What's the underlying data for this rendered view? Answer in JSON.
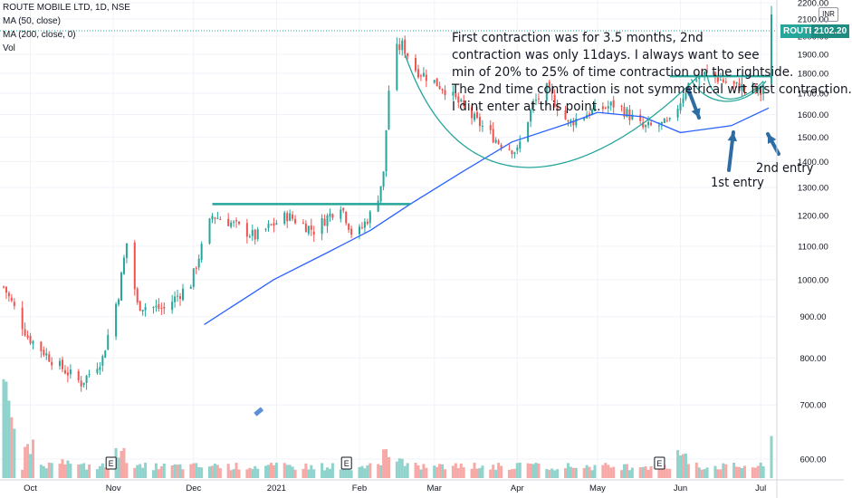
{
  "legend": {
    "symbol": "ROUTE MOBILE LTD, 1D, NSE",
    "ma50": "MA (50, close)",
    "ma200": "MA (200, close, 0)",
    "vol": "Vol"
  },
  "currency": "INR",
  "annotation": {
    "lines": [
      "First contraction was for 3.5 months, 2nd",
      "contraction was only 11days. I always want to see",
      "min of 20% to 25% of time contraction on the rightside.",
      "The 2nd time contraction is not symmetrical wrt first contraction.",
      "I dint enter at this point."
    ],
    "first_entry": "1st entry",
    "second_entry": "2nd entry"
  },
  "colors": {
    "up": "#26a69a",
    "down": "#ef5350",
    "ma": "#2962ff",
    "cup": "#26a69a",
    "grid": "#f0f3fa",
    "arrow": "#2e6da4"
  },
  "chart_data": {
    "type": "candlestick",
    "title": "ROUTE MOBILE LTD, 1D, NSE",
    "last_price": {
      "label": "ROUTE",
      "value": "2102.20"
    },
    "y_ticks": [
      "2200.00",
      "2100.00",
      "2000.00",
      "1900.00",
      "1800.00",
      "1700.00",
      "1600.00",
      "1500.00",
      "1400.00",
      "1300.00",
      "1200.00",
      "1100.00",
      "1000.00",
      "900.00",
      "800.00",
      "700.00",
      "600.00"
    ],
    "ylim": [
      550,
      2220
    ],
    "y_scale": "log",
    "x_ticks": [
      "Oct",
      "Nov",
      "Dec",
      "2021",
      "Feb",
      "Mar",
      "Apr",
      "May",
      "Jun",
      "Jul"
    ],
    "earnings_markers": [
      "E",
      "E",
      "E"
    ],
    "price_path": [
      [
        "2020-09-21",
        980
      ],
      [
        "2020-09-30",
        850
      ],
      [
        "2020-10-10",
        790
      ],
      [
        "2020-10-20",
        745
      ],
      [
        "2020-10-28",
        800
      ],
      [
        "2020-11-03",
        960
      ],
      [
        "2020-11-06",
        1110
      ],
      [
        "2020-11-10",
        930
      ],
      [
        "2020-11-20",
        920
      ],
      [
        "2020-11-30",
        990
      ],
      [
        "2020-12-08",
        1200
      ],
      [
        "2020-12-14",
        1180
      ],
      [
        "2020-12-24",
        1130
      ],
      [
        "2021-01-05",
        1200
      ],
      [
        "2021-01-15",
        1150
      ],
      [
        "2021-01-25",
        1240
      ],
      [
        "2021-01-30",
        1120
      ],
      [
        "2021-02-07",
        1230
      ],
      [
        "2021-02-10",
        1350
      ],
      [
        "2021-02-13",
        1900
      ],
      [
        "2021-02-17",
        1950
      ],
      [
        "2021-02-22",
        1820
      ],
      [
        "2021-03-05",
        1720
      ],
      [
        "2021-03-15",
        1590
      ],
      [
        "2021-03-25",
        1480
      ],
      [
        "2021-04-01",
        1440
      ],
      [
        "2021-04-07",
        1650
      ],
      [
        "2021-04-12",
        1720
      ],
      [
        "2021-04-20",
        1560
      ],
      [
        "2021-04-28",
        1610
      ],
      [
        "2021-05-08",
        1650
      ],
      [
        "2021-05-18",
        1540
      ],
      [
        "2021-05-28",
        1560
      ],
      [
        "2021-06-05",
        1770
      ],
      [
        "2021-06-11",
        1800
      ],
      [
        "2021-06-20",
        1740
      ],
      [
        "2021-06-28",
        1720
      ],
      [
        "2021-07-01",
        1700
      ],
      [
        "2021-07-03",
        1780
      ],
      [
        "2021-07-05",
        2102
      ]
    ],
    "series": [
      {
        "name": "MA (50, close)",
        "points": [
          [
            "2020-12-05",
            880
          ],
          [
            "2020-12-31",
            1000
          ],
          [
            "2021-01-20",
            1080
          ],
          [
            "2021-02-05",
            1150
          ],
          [
            "2021-02-20",
            1240
          ],
          [
            "2021-03-10",
            1350
          ],
          [
            "2021-03-30",
            1480
          ],
          [
            "2021-04-20",
            1560
          ],
          [
            "2021-05-01",
            1610
          ],
          [
            "2021-05-18",
            1590
          ],
          [
            "2021-06-01",
            1520
          ],
          [
            "2021-06-20",
            1550
          ],
          [
            "2021-07-04",
            1630
          ]
        ]
      }
    ],
    "volume": [
      [
        "2020-09-21",
        0.95
      ],
      [
        "2020-09-25",
        0.55
      ],
      [
        "2020-10-01",
        0.3
      ],
      [
        "2020-10-15",
        0.15
      ],
      [
        "2020-11-03",
        0.25
      ],
      [
        "2020-11-10",
        0.1
      ],
      [
        "2020-12-08",
        0.12
      ],
      [
        "2021-01-15",
        0.08
      ],
      [
        "2021-02-12",
        0.25
      ],
      [
        "2021-02-15",
        0.18
      ],
      [
        "2021-03-15",
        0.07
      ],
      [
        "2021-04-07",
        0.12
      ],
      [
        "2021-05-18",
        0.06
      ],
      [
        "2021-06-01",
        0.25
      ],
      [
        "2021-06-05",
        0.12
      ],
      [
        "2021-07-05",
        0.45
      ]
    ],
    "annotations": {
      "resistance_levels": [
        {
          "value": 1240,
          "from": "2020-12-08",
          "to": "2021-02-20"
        },
        {
          "value": 1785,
          "from": "2021-05-28",
          "to": "2021-07-05"
        }
      ],
      "cup_lows": [
        1420,
        1690
      ],
      "entry_points": [
        "1st entry",
        "2nd entry"
      ]
    },
    "grid": true,
    "legend_position": "top-left"
  }
}
